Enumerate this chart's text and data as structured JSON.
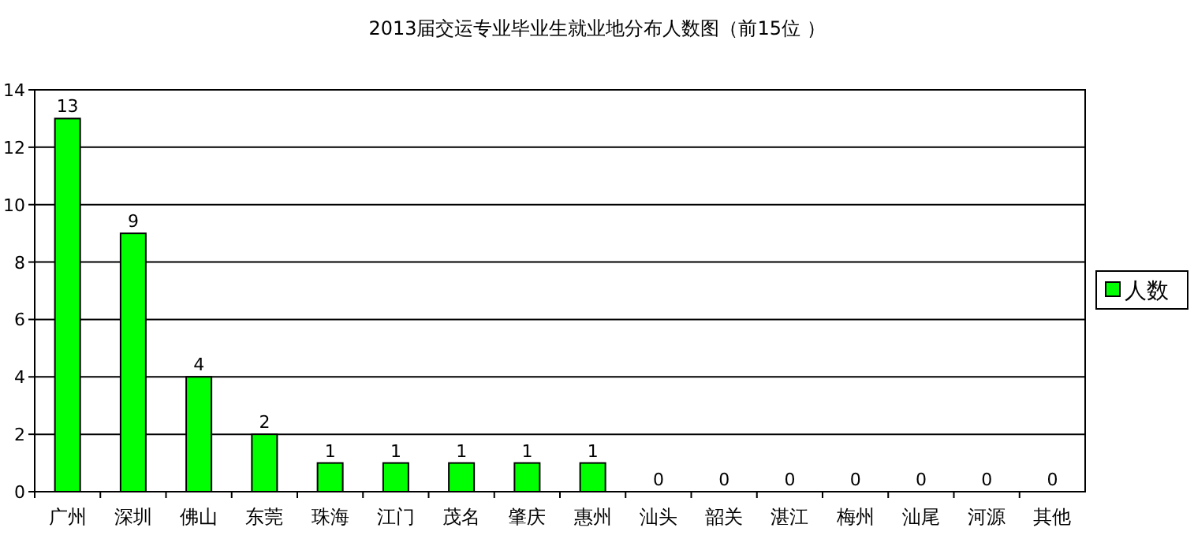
{
  "chart_data": {
    "type": "bar",
    "title": "2013届交运专业毕业生就业地分布人数图（前15位 ）",
    "categories": [
      "广州",
      "深圳",
      "佛山",
      "东莞",
      "珠海",
      "江门",
      "茂名",
      "肇庆",
      "惠州",
      "汕头",
      "韶关",
      "湛江",
      "梅州",
      "汕尾",
      "河源",
      "其他"
    ],
    "series": [
      {
        "name": "人数",
        "color": "#00ff00",
        "values": [
          13,
          9,
          4,
          2,
          1,
          1,
          1,
          1,
          1,
          0,
          0,
          0,
          0,
          0,
          0,
          0
        ]
      }
    ],
    "ylim": [
      0,
      14
    ],
    "yticks": [
      0,
      2,
      4,
      6,
      8,
      10,
      12,
      14
    ],
    "grid": "y",
    "data_labels": true,
    "legend": "right"
  }
}
